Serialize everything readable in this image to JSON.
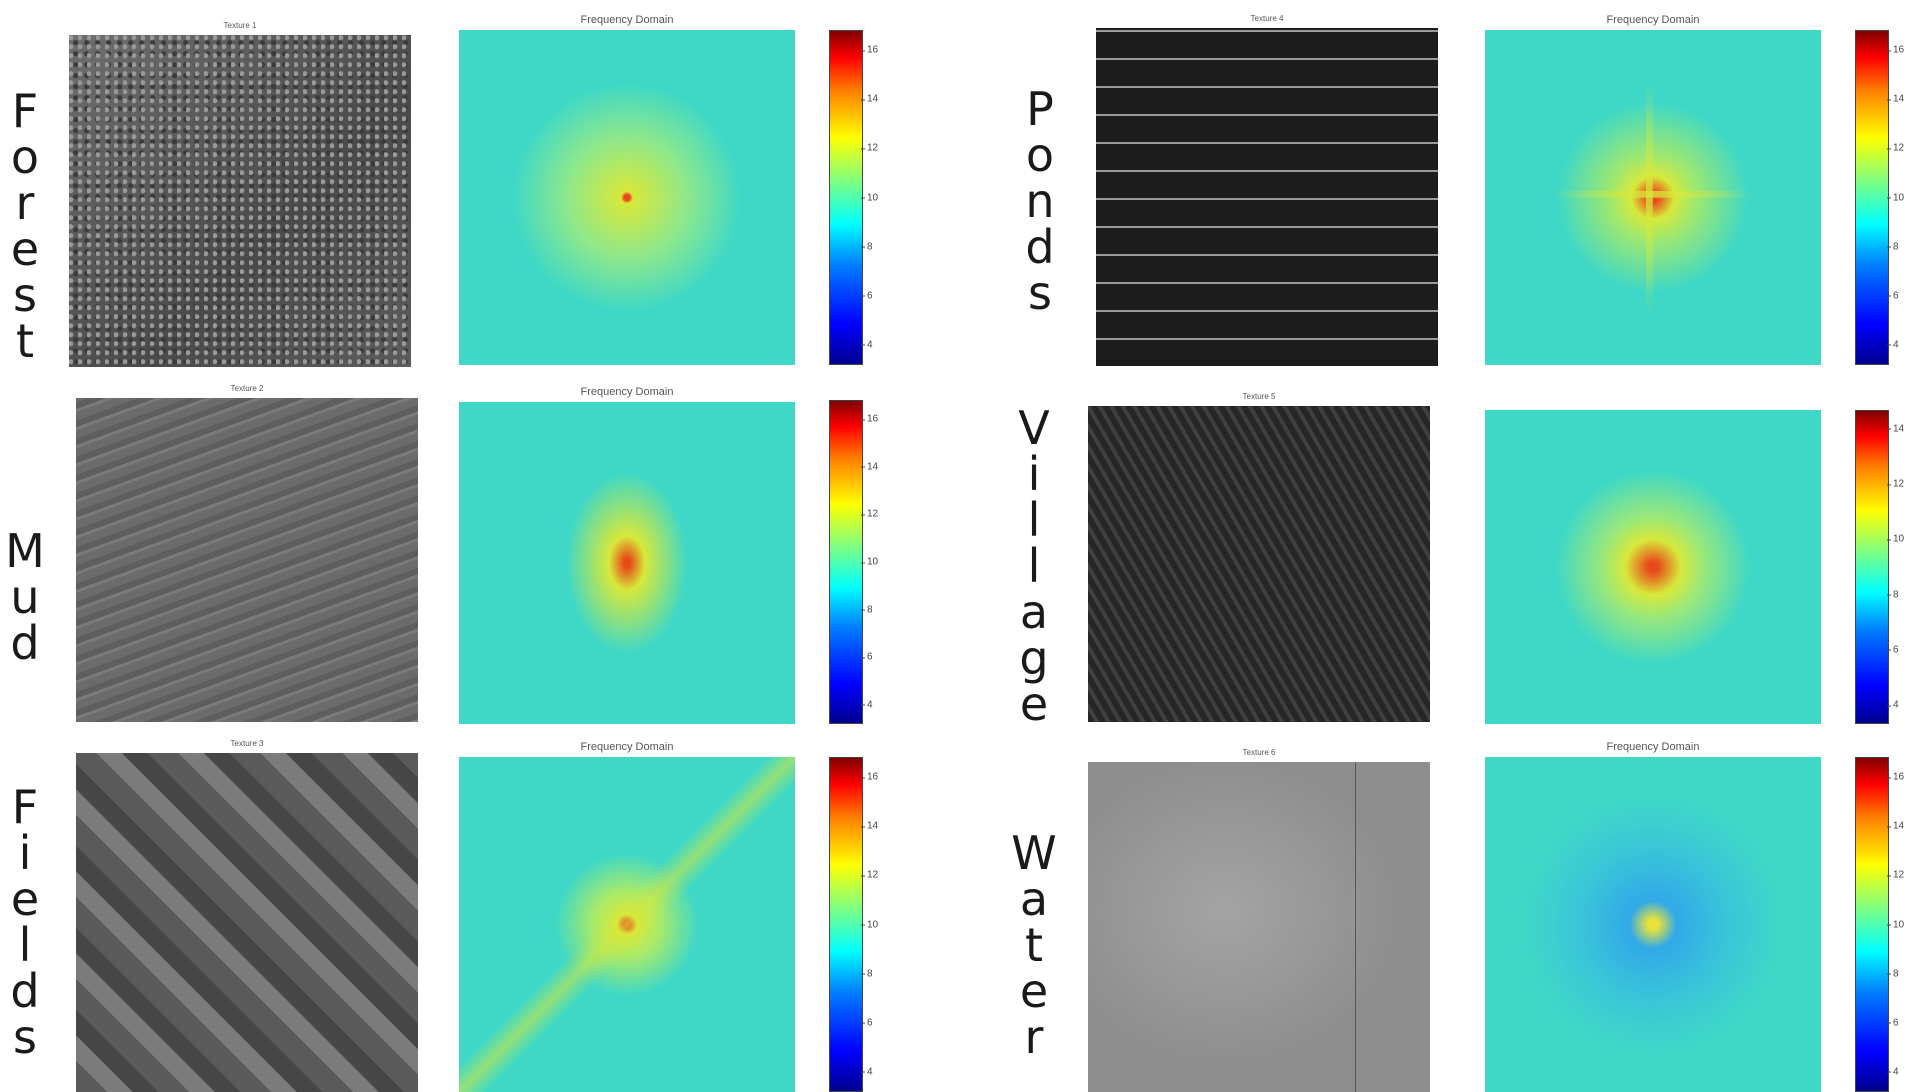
{
  "rows": [
    {
      "class_label": "Forest",
      "texture_title": "Texture 1",
      "fd_title": "Frequency Domain",
      "colorbar_ticks": [
        "16",
        "14",
        "12",
        "10",
        "8",
        "6",
        "4"
      ]
    },
    {
      "class_label": "Mud",
      "texture_title": "Texture 2",
      "fd_title": "Frequency Domain",
      "colorbar_ticks": [
        "16",
        "14",
        "12",
        "10",
        "8",
        "6",
        "4"
      ]
    },
    {
      "class_label": "Fields",
      "texture_title": "Texture 3",
      "fd_title": "Frequency Domain",
      "colorbar_ticks": [
        "16",
        "14",
        "12",
        "10",
        "8",
        "6",
        "4"
      ]
    },
    {
      "class_label": "Ponds",
      "texture_title": "Texture 4",
      "fd_title": "Frequency Domain",
      "colorbar_ticks": [
        "16",
        "14",
        "12",
        "10",
        "8",
        "6",
        "4"
      ]
    },
    {
      "class_label": "Village",
      "texture_title": "Texture 5",
      "fd_title": "",
      "colorbar_ticks": [
        "14",
        "12",
        "10",
        "8",
        "6",
        "4"
      ]
    },
    {
      "class_label": "Water",
      "texture_title": "Texture 6",
      "fd_title": "Frequency Domain",
      "colorbar_ticks": [
        "16",
        "14",
        "12",
        "10",
        "8",
        "6",
        "4"
      ]
    }
  ],
  "colors": {
    "spectrum_background": "#3fd8c6",
    "spectrum_center": "#e84a1a",
    "spectrum_glow": "#d7e83a",
    "water_center_glow": "#31a9e8"
  }
}
